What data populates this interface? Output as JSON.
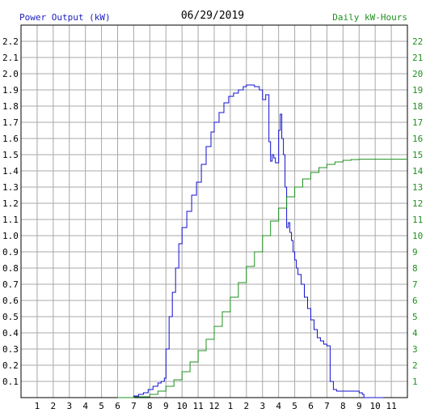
{
  "colors": {
    "power": "#1010d0",
    "energy": "#209020",
    "grid": "#a8a8a8",
    "axis_text": "#000000"
  },
  "chart_data": {
    "type": "line",
    "title": "06/29/2019",
    "left_axis_label": "Power Output (kW)",
    "right_axis_label": "Daily kW-Hours",
    "x_ticks": [
      "1",
      "2",
      "3",
      "4",
      "5",
      "6",
      "7",
      "8",
      "9",
      "10",
      "11",
      "12",
      "1",
      "2",
      "3",
      "4",
      "5",
      "6",
      "7",
      "8",
      "9",
      "10",
      "11"
    ],
    "x_range_hours": [
      0,
      24
    ],
    "y_left_ticks": [
      "0.1",
      "0.2",
      "0.3",
      "0.4",
      "0.5",
      "0.6",
      "0.7",
      "0.8",
      "0.9",
      "1.0",
      "1.1",
      "1.2",
      "1.3",
      "1.4",
      "1.5",
      "1.6",
      "1.7",
      "1.8",
      "1.9",
      "2.0",
      "2.1",
      "2.2"
    ],
    "y_left_range": [
      0,
      2.3
    ],
    "y_right_ticks": [
      "1",
      "2",
      "3",
      "4",
      "5",
      "6",
      "7",
      "8",
      "9",
      "10",
      "11",
      "12",
      "13",
      "14",
      "15",
      "16",
      "17",
      "18",
      "19",
      "20",
      "21",
      "22"
    ],
    "y_right_range": [
      0,
      23
    ],
    "grid": true,
    "series": [
      {
        "name": "Power Output (kW)",
        "axis": "left",
        "x": [
          6.0,
          6.5,
          7.0,
          7.3,
          7.6,
          7.9,
          8.2,
          8.5,
          8.7,
          8.9,
          9.0,
          9.2,
          9.4,
          9.6,
          9.8,
          10.0,
          10.3,
          10.6,
          10.9,
          11.2,
          11.5,
          11.8,
          12.0,
          12.3,
          12.6,
          12.9,
          13.2,
          13.5,
          13.8,
          14.0,
          14.2,
          14.5,
          14.8,
          15.0,
          15.2,
          15.4,
          15.5,
          15.6,
          15.7,
          15.8,
          16.0,
          16.1,
          16.2,
          16.3,
          16.4,
          16.5,
          16.6,
          16.7,
          16.8,
          16.9,
          17.0,
          17.1,
          17.2,
          17.4,
          17.6,
          17.8,
          18.0,
          18.2,
          18.4,
          18.6,
          18.8,
          19.0,
          19.2,
          19.4,
          19.6,
          19.8,
          20.0,
          20.2,
          20.4,
          20.6,
          20.8,
          21.0,
          21.2,
          21.3,
          21.5,
          22.0,
          22.4,
          22.5
        ],
        "values": [
          0.0,
          0.0,
          0.01,
          0.02,
          0.03,
          0.05,
          0.07,
          0.09,
          0.1,
          0.12,
          0.3,
          0.5,
          0.65,
          0.8,
          0.95,
          1.05,
          1.15,
          1.25,
          1.33,
          1.44,
          1.55,
          1.64,
          1.7,
          1.76,
          1.82,
          1.86,
          1.88,
          1.9,
          1.92,
          1.93,
          1.93,
          1.92,
          1.9,
          1.84,
          1.87,
          1.58,
          1.46,
          1.5,
          1.48,
          1.45,
          1.65,
          1.75,
          1.6,
          1.5,
          1.3,
          1.05,
          1.08,
          1.02,
          0.97,
          0.9,
          0.85,
          0.8,
          0.76,
          0.7,
          0.62,
          0.55,
          0.48,
          0.42,
          0.37,
          0.35,
          0.33,
          0.32,
          0.1,
          0.05,
          0.04,
          0.04,
          0.04,
          0.04,
          0.04,
          0.04,
          0.04,
          0.03,
          0.02,
          0.0,
          0.0,
          0.0,
          0.0,
          0.0
        ]
      },
      {
        "name": "Daily kW-Hours",
        "axis": "right",
        "x": [
          6.0,
          7.0,
          8.0,
          8.5,
          9.0,
          9.5,
          10.0,
          10.5,
          11.0,
          11.5,
          12.0,
          12.5,
          13.0,
          13.5,
          14.0,
          14.5,
          15.0,
          15.5,
          16.0,
          16.5,
          17.0,
          17.5,
          18.0,
          18.5,
          19.0,
          19.5,
          20.0,
          20.5,
          21.0,
          21.5,
          22.0,
          23.0,
          24.0
        ],
        "values": [
          0.0,
          0.05,
          0.2,
          0.4,
          0.7,
          1.1,
          1.6,
          2.2,
          2.9,
          3.6,
          4.4,
          5.3,
          6.2,
          7.1,
          8.1,
          9.0,
          10.0,
          10.9,
          11.7,
          12.4,
          13.0,
          13.5,
          13.9,
          14.2,
          14.4,
          14.55,
          14.65,
          14.7,
          14.72,
          14.72,
          14.72,
          14.72,
          14.72
        ]
      }
    ]
  }
}
